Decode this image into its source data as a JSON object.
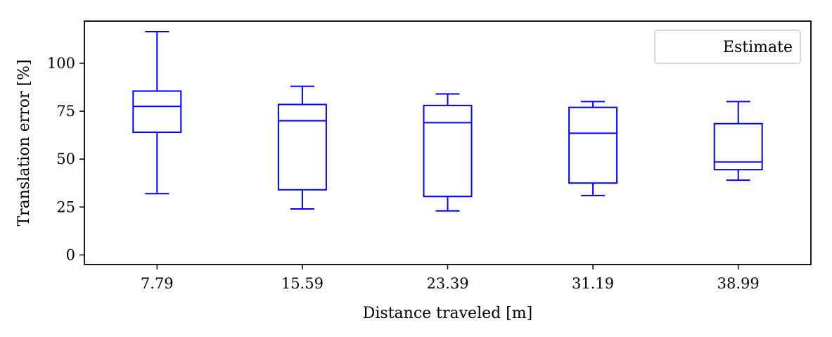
{
  "chart_data": {
    "type": "box",
    "xlabel": "Distance traveled [m]",
    "ylabel": "Translation error [%]",
    "ylim": [
      -5,
      122
    ],
    "yticks": [
      0,
      25,
      50,
      75,
      100
    ],
    "grid": false,
    "legend": {
      "position": "top-right",
      "entries": [
        "Estimate"
      ]
    },
    "color": "#0000ff",
    "categories": [
      "7.79",
      "15.59",
      "23.39",
      "31.19",
      "38.99"
    ],
    "series": [
      {
        "name": "Estimate",
        "boxes": [
          {
            "whisker_low": 32,
            "q1": 64,
            "median": 77.5,
            "q3": 85.5,
            "whisker_high": 116.5
          },
          {
            "whisker_low": 24,
            "q1": 34,
            "median": 70,
            "q3": 78.5,
            "whisker_high": 88
          },
          {
            "whisker_low": 23,
            "q1": 30.5,
            "median": 69,
            "q3": 78,
            "whisker_high": 84
          },
          {
            "whisker_low": 31,
            "q1": 37.5,
            "median": 63.5,
            "q3": 77,
            "whisker_high": 80
          },
          {
            "whisker_low": 39,
            "q1": 44.5,
            "median": 48.5,
            "q3": 68.5,
            "whisker_high": 80
          }
        ]
      }
    ]
  }
}
